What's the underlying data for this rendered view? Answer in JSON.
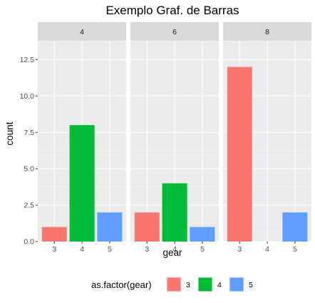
{
  "chart_data": {
    "type": "bar",
    "title": "Exemplo Graf. de Barras",
    "xlabel": "gear",
    "ylabel": "count",
    "categories": [
      "3",
      "4",
      "5"
    ],
    "ylim": [
      0,
      13.8
    ],
    "yticks": [
      0,
      2.5,
      5,
      7.5,
      10,
      12.5
    ],
    "ytick_labels": [
      "0.0",
      "2.5",
      "5.0",
      "7.5",
      "10.0",
      "12.5"
    ],
    "facet_variable": "cyl",
    "facets": [
      {
        "label": "4",
        "values": [
          1,
          8,
          2
        ]
      },
      {
        "label": "6",
        "values": [
          2,
          4,
          1
        ]
      },
      {
        "label": "8",
        "values": [
          12,
          0,
          2
        ]
      }
    ],
    "fill_colors": {
      "3": "#F8766D",
      "4": "#00BA38",
      "5": "#619CFF"
    },
    "grid": true,
    "legend": {
      "position": "bottom",
      "title": "as.factor(gear)",
      "items": [
        "3",
        "4",
        "5"
      ]
    }
  }
}
